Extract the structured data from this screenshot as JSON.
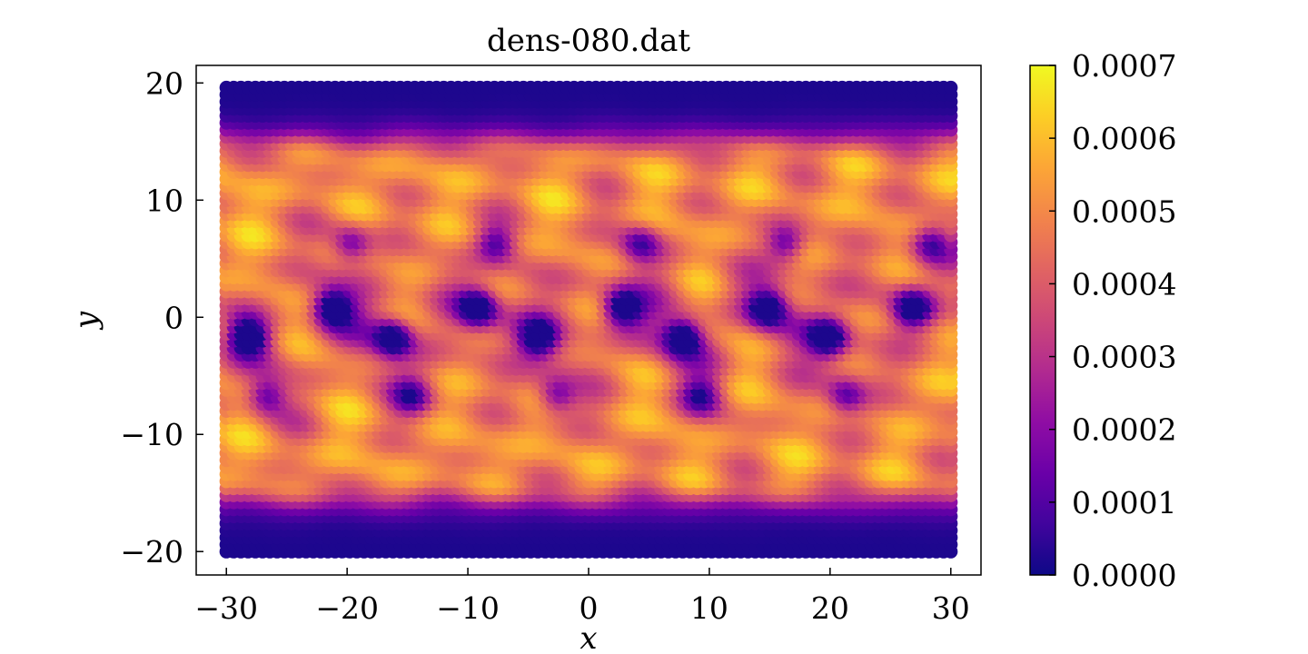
{
  "chart_data": {
    "type": "heatmap",
    "title": "dens-080.dat",
    "xlabel": "x",
    "ylabel": "y",
    "xlim": [
      -32.5,
      32.5
    ],
    "ylim": [
      -22,
      21.5
    ],
    "x_ticks": [
      -30,
      -20,
      -10,
      0,
      10,
      20,
      30
    ],
    "x_tick_labels": [
      "−30",
      "−20",
      "−10",
      "0",
      "10",
      "20",
      "30"
    ],
    "y_ticks": [
      -20,
      -10,
      0,
      10,
      20
    ],
    "y_tick_labels": [
      "−20",
      "−10",
      "0",
      "10",
      "20"
    ],
    "data_extent": {
      "x": [
        -30,
        30
      ],
      "y": [
        -20,
        20
      ]
    },
    "colormap": "plasma",
    "color_range": [
      0.0,
      0.0007
    ],
    "colorbar": {
      "ticks": [
        0.0,
        0.0001,
        0.0002,
        0.0003,
        0.0004,
        0.0005,
        0.0006,
        0.0007
      ],
      "tick_labels": [
        "0.0000",
        "0.0001",
        "0.0002",
        "0.0003",
        "0.0004",
        "0.0005",
        "0.0006",
        "0.0007"
      ]
    },
    "density_features": {
      "background_level": 0.00052,
      "edge_band_y": 15.5,
      "vortex_minima_upper": {
        "x": [
          -21,
          -9,
          3,
          15,
          27
        ],
        "y": 1
      },
      "vortex_minima_lower": {
        "x": [
          -28,
          -16,
          -4,
          8,
          20
        ],
        "y": -1.5
      },
      "minimum_value": 2e-05
    }
  }
}
